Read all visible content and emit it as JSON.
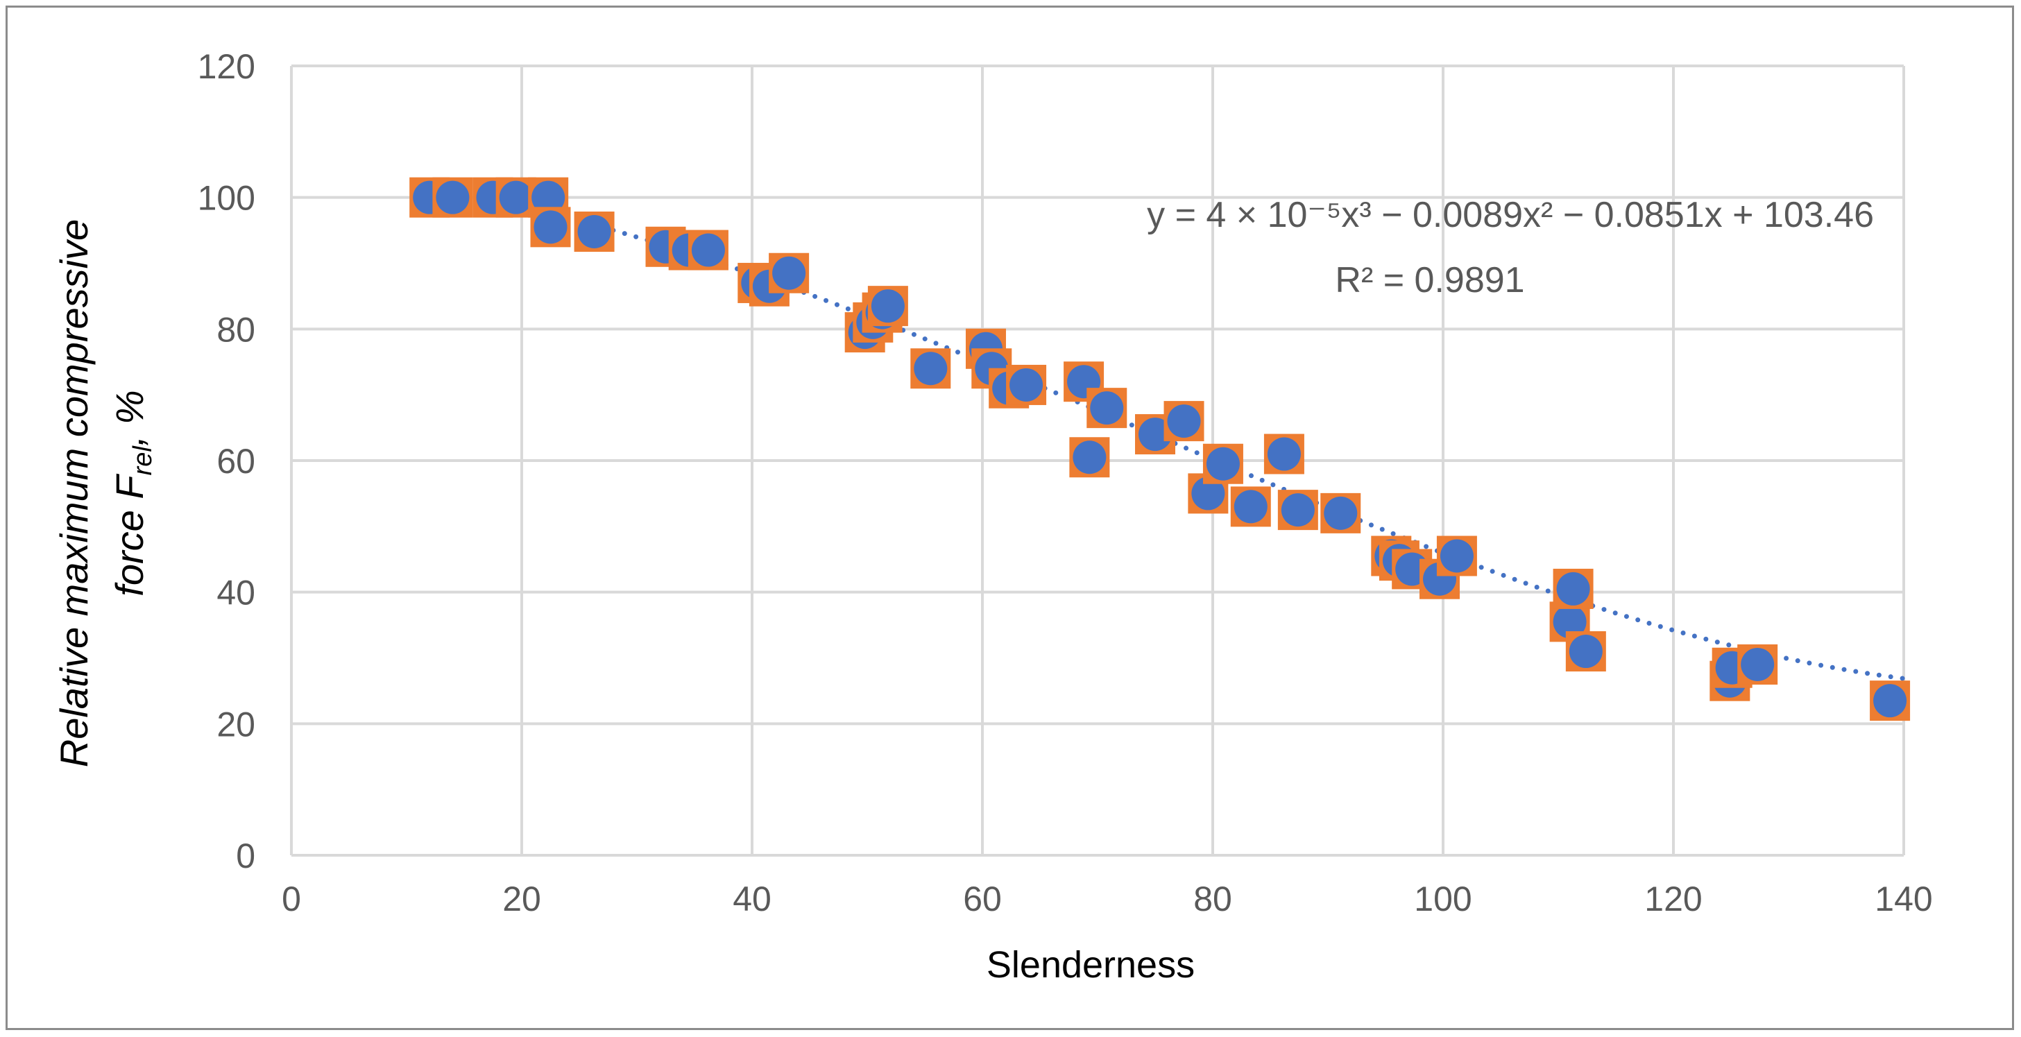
{
  "chart_data": {
    "type": "scatter",
    "title": "",
    "xlabel": "Slenderness",
    "ylabel_line1": "Relative maximum compressive",
    "ylabel_line2_prefix": "force  F",
    "ylabel_line2_sub": "rel",
    "ylabel_line2_suffix": ", %",
    "xlim": [
      0,
      140
    ],
    "ylim": [
      0,
      120
    ],
    "x_ticks": [
      0,
      20,
      40,
      60,
      80,
      100,
      120,
      140
    ],
    "y_ticks": [
      0,
      20,
      40,
      60,
      80,
      100,
      120
    ],
    "grid": true,
    "colors": {
      "marker_square": "#ED7D31",
      "marker_circle": "#4472C4",
      "trendline": "#4472C4",
      "grid": "#d9d9d9",
      "tick_text": "#595959"
    },
    "trendline": {
      "type": "polynomial",
      "degree": 3,
      "coefficients": [
        4e-05,
        -0.0089,
        -0.0851,
        103.46
      ],
      "x_range": [
        22,
        140
      ],
      "equation_label": "y = 4 × 10⁻⁵x³ − 0.0089x² − 0.0851x + 103.46",
      "r2_label": "R² = 0.9891"
    },
    "series": [
      {
        "name": "Relative maximum compressive force",
        "points": [
          [
            12,
            100
          ],
          [
            14,
            100
          ],
          [
            17.5,
            100
          ],
          [
            19.5,
            100
          ],
          [
            22.3,
            100
          ],
          [
            22.5,
            95.5
          ],
          [
            26.3,
            94.8
          ],
          [
            32.5,
            92.5
          ],
          [
            34.5,
            92
          ],
          [
            36.2,
            92
          ],
          [
            40.5,
            87
          ],
          [
            41.5,
            86.5
          ],
          [
            43.2,
            88.5
          ],
          [
            49.8,
            79.5
          ],
          [
            50.5,
            81
          ],
          [
            51.3,
            82.5
          ],
          [
            51.8,
            83.5
          ],
          [
            55.5,
            74
          ],
          [
            60.3,
            77
          ],
          [
            60.8,
            74
          ],
          [
            62.3,
            71
          ],
          [
            63.8,
            71.5
          ],
          [
            68.8,
            72
          ],
          [
            69.3,
            60.5
          ],
          [
            70.8,
            68
          ],
          [
            75,
            64
          ],
          [
            77.5,
            66
          ],
          [
            79.6,
            55
          ],
          [
            80.9,
            59.5
          ],
          [
            83.3,
            53
          ],
          [
            86.2,
            61
          ],
          [
            87.4,
            52.5
          ],
          [
            91.1,
            52
          ],
          [
            95.5,
            45.5
          ],
          [
            96.2,
            44.8
          ],
          [
            97.3,
            43.5
          ],
          [
            99.7,
            42
          ],
          [
            101.2,
            45.5
          ],
          [
            111,
            35.5
          ],
          [
            111.3,
            40.5
          ],
          [
            112.4,
            31
          ],
          [
            124.9,
            26.5
          ],
          [
            125.1,
            28.5
          ],
          [
            127.3,
            29
          ],
          [
            138.8,
            23.5
          ]
        ]
      }
    ]
  }
}
